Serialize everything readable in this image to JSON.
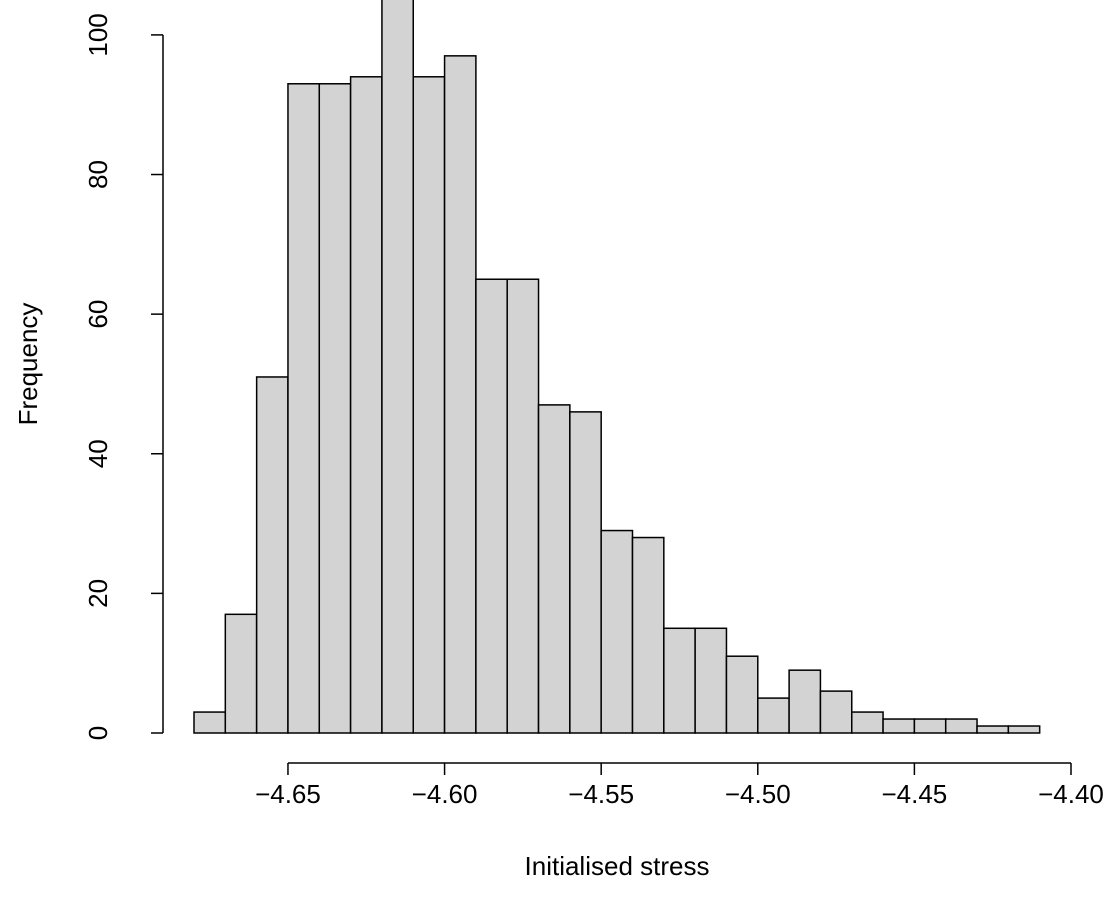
{
  "chart_data": {
    "type": "histogram",
    "x_label": "Initialised stress",
    "y_label": "Frequency",
    "bins": [
      -4.68,
      -4.67,
      -4.66,
      -4.65,
      -4.64,
      -4.63,
      -4.62,
      -4.61,
      -4.6,
      -4.59,
      -4.58,
      -4.57,
      -4.56,
      -4.55,
      -4.54,
      -4.53,
      -4.52,
      -4.51,
      -4.5,
      -4.49,
      -4.48,
      -4.47,
      -4.46,
      -4.45,
      -4.44,
      -4.43,
      -4.42,
      -4.41
    ],
    "values": [
      3,
      17,
      51,
      93,
      93,
      94,
      110,
      94,
      97,
      65,
      65,
      47,
      46,
      29,
      28,
      15,
      15,
      11,
      5,
      9,
      6,
      3,
      2,
      2,
      2,
      1,
      1
    ],
    "color": "#d3d3d3",
    "xlim": [
      -4.68,
      -4.4
    ],
    "xticks": [
      {
        "value": -4.65,
        "label": "−4.65"
      },
      {
        "value": -4.6,
        "label": "−4.60"
      },
      {
        "value": -4.55,
        "label": "−4.55"
      },
      {
        "value": -4.5,
        "label": "−4.50"
      },
      {
        "value": -4.45,
        "label": "−4.45"
      },
      {
        "value": -4.4,
        "label": "−4.40"
      }
    ],
    "ylim": [
      0,
      105
    ],
    "yticks": [
      0,
      20,
      40,
      60,
      80,
      100
    ]
  }
}
